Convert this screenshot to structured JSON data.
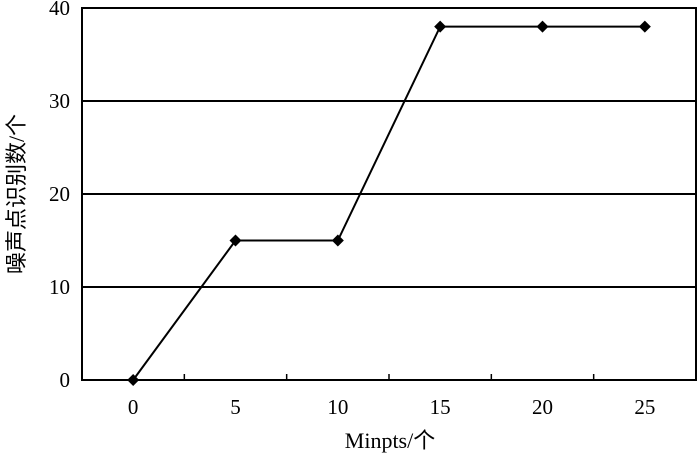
{
  "chart_data": {
    "type": "line",
    "title": "",
    "xlabel": "Minpts/个",
    "ylabel": "噪声点识别数/个",
    "x": [
      0,
      5,
      10,
      15,
      20,
      25
    ],
    "series": [
      {
        "values": [
          0,
          15,
          15,
          38,
          38,
          38
        ]
      }
    ],
    "xticks": [
      "0",
      "5",
      "10",
      "15",
      "20",
      "25"
    ],
    "yticks": [
      "0",
      "10",
      "20",
      "30",
      "40"
    ],
    "xlim": [
      -2.5,
      27.5
    ],
    "ylim": [
      0,
      40
    ],
    "grid": "horizontal",
    "marker": "diamond",
    "legend": "none",
    "colors": {
      "line": "#000000",
      "grid": "#000000",
      "axis": "#000000",
      "background": "#ffffff"
    }
  }
}
